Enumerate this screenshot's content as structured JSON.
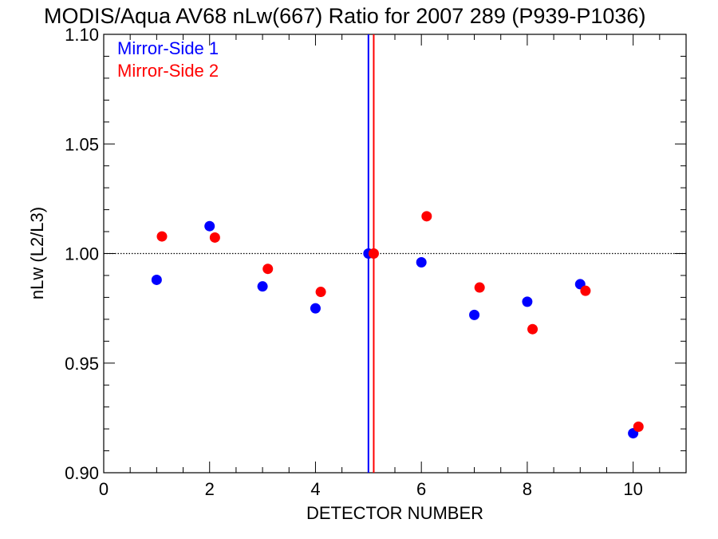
{
  "chart_data": {
    "type": "scatter",
    "title": "MODIS/Aqua AV68 nLw(667) Ratio for 2007 289 (P939-P1036)",
    "xlabel": "DETECTOR NUMBER",
    "ylabel": "nLw (L2/L3)",
    "xlim": [
      0,
      11
    ],
    "ylim": [
      0.9,
      1.1
    ],
    "x_ticks": [
      0,
      2,
      4,
      6,
      8,
      10
    ],
    "x_tick_labels": [
      "0",
      "2",
      "4",
      "6",
      "8",
      "10"
    ],
    "y_ticks": [
      0.9,
      0.95,
      1.0,
      1.05,
      1.1
    ],
    "y_tick_labels": [
      "0.90",
      "0.95",
      "1.00",
      "1.05",
      "1.10"
    ],
    "reference_line_y": 1.0,
    "legend_position": "top-left",
    "series": [
      {
        "name": "Mirror-Side 1",
        "color": "#0000ff",
        "points": [
          {
            "x": 1,
            "y": 0.988
          },
          {
            "x": 2,
            "y": 1.0125
          },
          {
            "x": 3,
            "y": 0.985
          },
          {
            "x": 4,
            "y": 0.975
          },
          {
            "x": 5,
            "y": 1.0
          },
          {
            "x": 6,
            "y": 0.996
          },
          {
            "x": 7,
            "y": 0.972
          },
          {
            "x": 8,
            "y": 0.978
          },
          {
            "x": 9,
            "y": 0.986
          },
          {
            "x": 10,
            "y": 0.918
          }
        ],
        "vertical_line_x": 5.0
      },
      {
        "name": "Mirror-Side 2",
        "color": "#ff0000",
        "points": [
          {
            "x": 1.1,
            "y": 1.0078
          },
          {
            "x": 2.1,
            "y": 1.0073
          },
          {
            "x": 3.1,
            "y": 0.993
          },
          {
            "x": 4.1,
            "y": 0.9825
          },
          {
            "x": 5.1,
            "y": 1.0
          },
          {
            "x": 6.1,
            "y": 1.017
          },
          {
            "x": 7.1,
            "y": 0.9845
          },
          {
            "x": 8.1,
            "y": 0.9655
          },
          {
            "x": 9.1,
            "y": 0.983
          },
          {
            "x": 10.1,
            "y": 0.921
          }
        ],
        "vertical_line_x": 5.1
      }
    ]
  }
}
